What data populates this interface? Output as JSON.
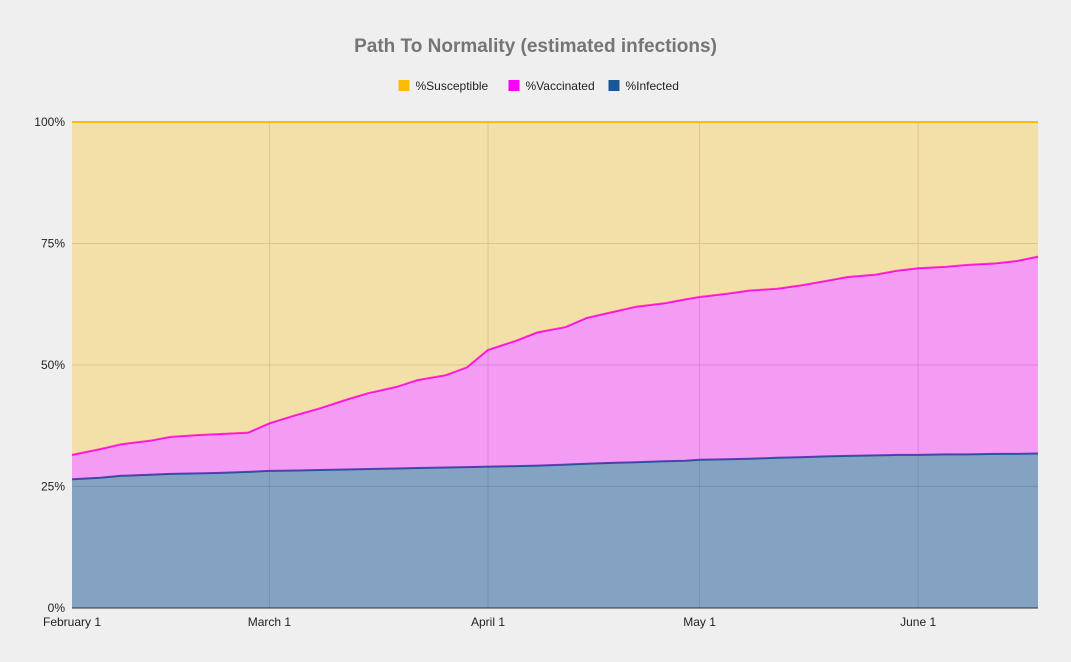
{
  "chart_data": {
    "type": "area",
    "stacked": true,
    "normalized": true,
    "title": "Path To Normality (estimated infections)",
    "legend_position": "top",
    "grid": true,
    "ylim": [
      0,
      100
    ],
    "y_ticks": [
      {
        "value": 0,
        "label": "0%"
      },
      {
        "value": 25,
        "label": "25%"
      },
      {
        "value": 50,
        "label": "50%"
      },
      {
        "value": 75,
        "label": "75%"
      },
      {
        "value": 100,
        "label": "100%"
      }
    ],
    "xlim": [
      "2021-02-01",
      "2021-06-18"
    ],
    "x_ticks": [
      {
        "date": "2021-02-01",
        "label": "February 1"
      },
      {
        "date": "2021-03-01",
        "label": "March 1"
      },
      {
        "date": "2021-04-01",
        "label": "April 1"
      },
      {
        "date": "2021-05-01",
        "label": "May 1"
      },
      {
        "date": "2021-06-01",
        "label": "June 1"
      }
    ],
    "x": [
      "2021-02-01",
      "2021-02-05",
      "2021-02-08",
      "2021-02-12",
      "2021-02-15",
      "2021-02-19",
      "2021-02-22",
      "2021-02-26",
      "2021-03-01",
      "2021-03-05",
      "2021-03-08",
      "2021-03-12",
      "2021-03-15",
      "2021-03-19",
      "2021-03-22",
      "2021-03-26",
      "2021-03-29",
      "2021-04-01",
      "2021-04-05",
      "2021-04-08",
      "2021-04-12",
      "2021-04-15",
      "2021-04-19",
      "2021-04-22",
      "2021-04-26",
      "2021-04-29",
      "2021-05-01",
      "2021-05-05",
      "2021-05-08",
      "2021-05-12",
      "2021-05-15",
      "2021-05-19",
      "2021-05-22",
      "2021-05-26",
      "2021-05-29",
      "2021-06-01",
      "2021-06-05",
      "2021-06-08",
      "2021-06-12",
      "2021-06-15",
      "2021-06-18"
    ],
    "series": [
      {
        "name": "%Infected",
        "color": "#1a5796",
        "values": [
          26.5,
          26.8,
          27.2,
          27.4,
          27.6,
          27.7,
          27.8,
          28.0,
          28.2,
          28.3,
          28.4,
          28.5,
          28.6,
          28.7,
          28.8,
          28.9,
          29.0,
          29.1,
          29.2,
          29.3,
          29.5,
          29.7,
          29.9,
          30.0,
          30.2,
          30.3,
          30.5,
          30.6,
          30.7,
          30.9,
          31.0,
          31.2,
          31.3,
          31.4,
          31.5,
          31.5,
          31.6,
          31.6,
          31.7,
          31.7,
          31.8
        ]
      },
      {
        "name": "%Vaccinated",
        "color": "#ff00ff",
        "values": [
          5.0,
          5.9,
          6.5,
          7.0,
          7.6,
          7.9,
          8.0,
          8.1,
          9.8,
          11.5,
          12.6,
          14.4,
          15.6,
          16.8,
          18.1,
          19.0,
          20.5,
          24.0,
          25.8,
          27.4,
          28.3,
          30.0,
          31.1,
          32.0,
          32.5,
          33.2,
          33.5,
          34.1,
          34.6,
          34.8,
          35.3,
          36.1,
          36.8,
          37.2,
          37.9,
          38.4,
          38.6,
          39.0,
          39.2,
          39.7,
          40.5
        ]
      },
      {
        "name": "%Susceptible",
        "color": "#fbbc04",
        "values": [
          68.5,
          67.3,
          66.3,
          65.6,
          64.8,
          64.4,
          64.2,
          63.9,
          62.0,
          60.2,
          59.0,
          57.1,
          55.8,
          54.5,
          53.1,
          52.1,
          50.5,
          46.9,
          45.0,
          43.3,
          42.2,
          40.3,
          39.0,
          38.0,
          37.3,
          36.5,
          36.0,
          35.3,
          34.7,
          34.3,
          33.7,
          32.7,
          31.9,
          31.4,
          30.6,
          30.1,
          29.8,
          29.4,
          29.1,
          28.6,
          27.7
        ]
      }
    ],
    "legend_order": [
      "%Susceptible",
      "%Vaccinated",
      "%Infected"
    ]
  }
}
